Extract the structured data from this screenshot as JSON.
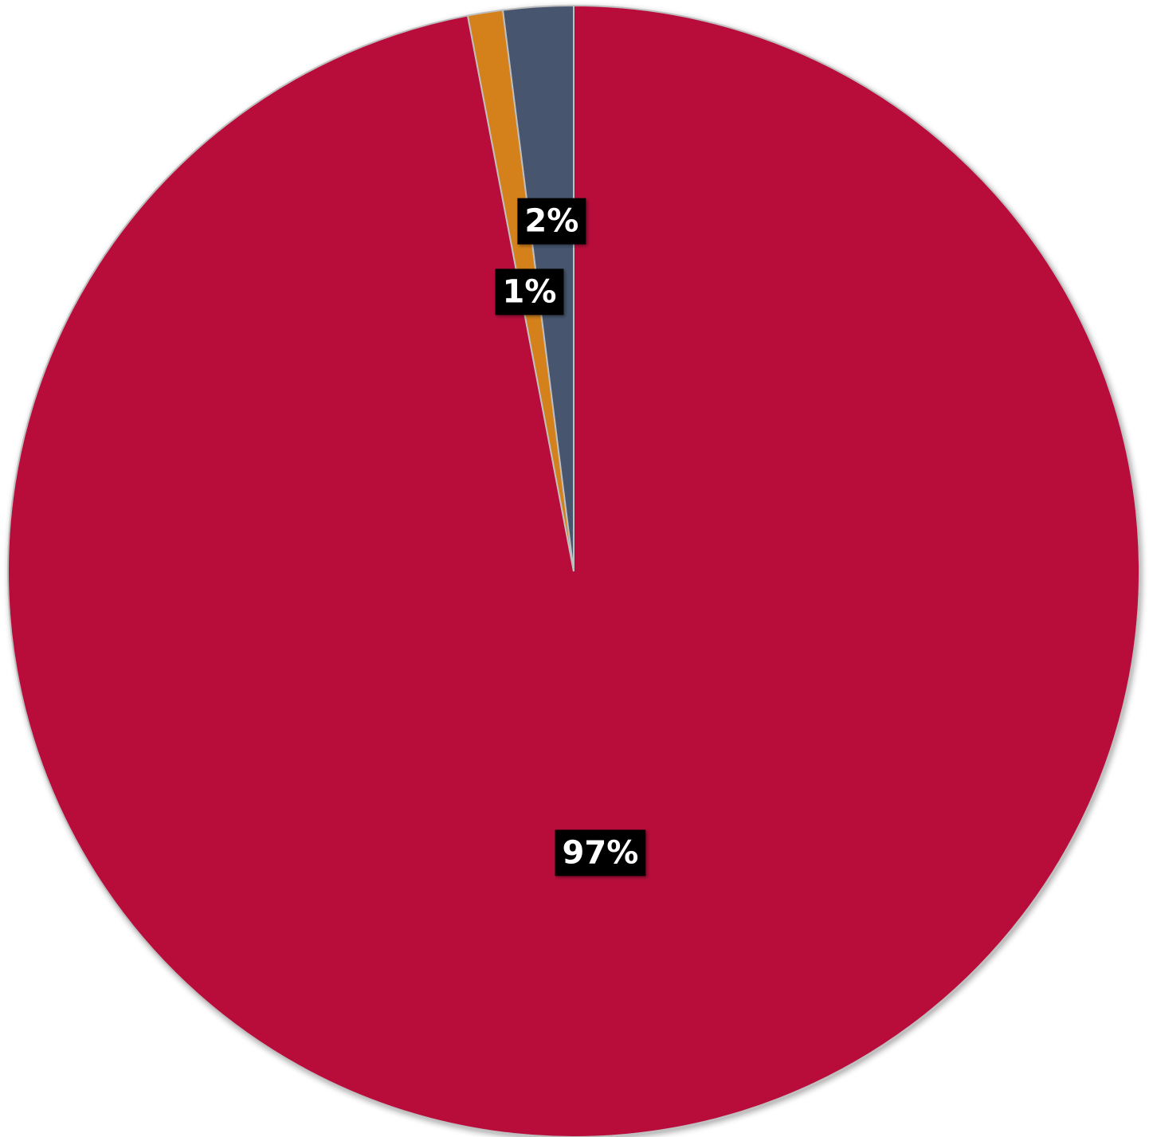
{
  "chart_data": {
    "type": "pie",
    "title": "",
    "categories": [
      "",
      "",
      ""
    ],
    "values": [
      97,
      1,
      2
    ],
    "labels": [
      "97%",
      "1%",
      "2%"
    ],
    "colors": [
      "#B8093B",
      "#D4811A",
      "#46566E"
    ],
    "start_angle_deg": 0,
    "direction": "clockwise",
    "legend": "none",
    "label_style": {
      "text_color": "#FFFFFF",
      "background": "#000000"
    },
    "slice_border_color": "#BFBFBF"
  }
}
